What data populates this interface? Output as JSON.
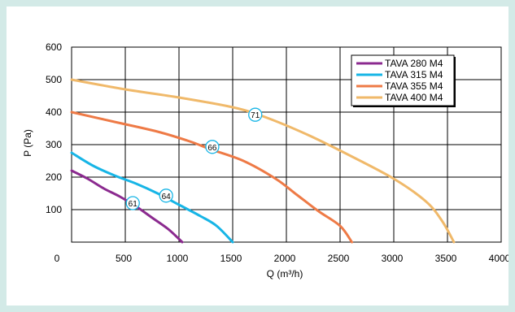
{
  "chart_data": {
    "type": "line",
    "xlabel": "Q (m³/h)",
    "ylabel": "P (Pa)",
    "xlim": [
      0,
      4000
    ],
    "ylim": [
      0,
      600
    ],
    "x_ticks": [
      0,
      500,
      1000,
      1500,
      2000,
      2500,
      3000,
      3500,
      4000
    ],
    "y_ticks": [
      100,
      200,
      300,
      400,
      500,
      600
    ],
    "grid": true,
    "legend_position": "top-right",
    "series": [
      {
        "name": "TAVA 280 M4",
        "color": "#8b2a8f",
        "points": [
          [
            0,
            220
          ],
          [
            150,
            195
          ],
          [
            300,
            165
          ],
          [
            450,
            140
          ],
          [
            600,
            110
          ],
          [
            750,
            75
          ],
          [
            900,
            40
          ],
          [
            1030,
            0
          ]
        ],
        "marker": {
          "label": "61",
          "x": 570,
          "y": 120
        }
      },
      {
        "name": "TAVA 315 M4",
        "color": "#17b5e6",
        "points": [
          [
            0,
            275
          ],
          [
            200,
            235
          ],
          [
            400,
            205
          ],
          [
            600,
            180
          ],
          [
            800,
            150
          ],
          [
            1000,
            115
          ],
          [
            1200,
            80
          ],
          [
            1350,
            50
          ],
          [
            1500,
            0
          ]
        ],
        "marker": {
          "label": "64",
          "x": 880,
          "y": 143
        }
      },
      {
        "name": "TAVA 355 M4",
        "color": "#ee7a46",
        "points": [
          [
            0,
            400
          ],
          [
            400,
            370
          ],
          [
            800,
            340
          ],
          [
            1100,
            310
          ],
          [
            1300,
            285
          ],
          [
            1600,
            250
          ],
          [
            1900,
            195
          ],
          [
            2100,
            145
          ],
          [
            2300,
            95
          ],
          [
            2500,
            50
          ],
          [
            2610,
            0
          ]
        ],
        "marker": {
          "label": "66",
          "x": 1310,
          "y": 293
        }
      },
      {
        "name": "TAVA 400 M4",
        "color": "#f0b96a",
        "points": [
          [
            0,
            500
          ],
          [
            500,
            470
          ],
          [
            1000,
            445
          ],
          [
            1500,
            415
          ],
          [
            1800,
            385
          ],
          [
            2200,
            330
          ],
          [
            2600,
            265
          ],
          [
            3000,
            195
          ],
          [
            3300,
            125
          ],
          [
            3450,
            65
          ],
          [
            3560,
            0
          ]
        ],
        "marker": {
          "label": "71",
          "x": 1710,
          "y": 392
        }
      }
    ]
  }
}
